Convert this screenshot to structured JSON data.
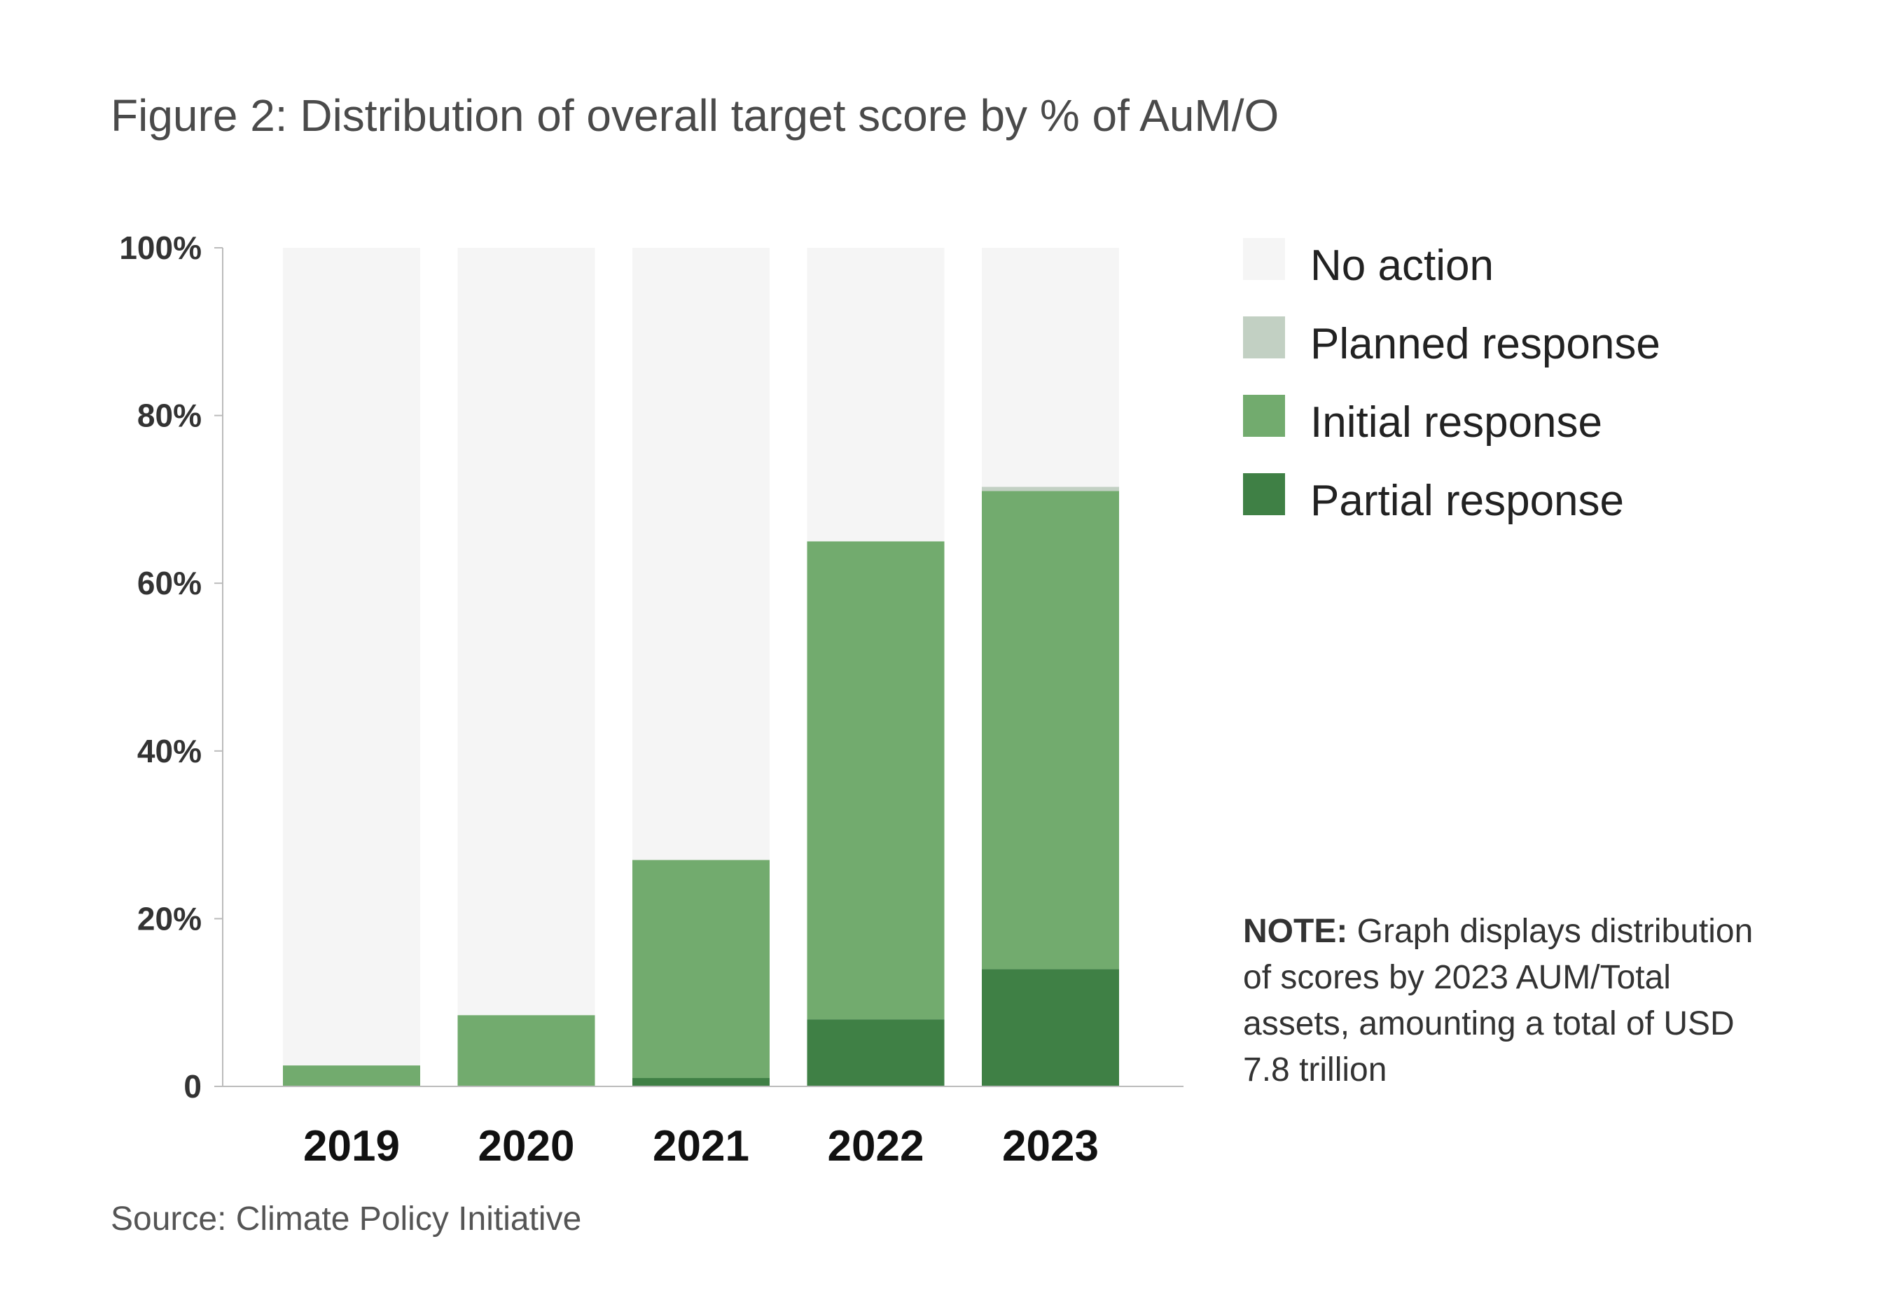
{
  "title": "Figure 2: Distribution of overall target score by % of AuM/O",
  "source": "Source: Climate Policy Initiative",
  "note": {
    "label": "NOTE:",
    "text": " Graph displays distribution of scores by 2023 AUM/Total assets, amounting a total of USD 7.8 trillion"
  },
  "colors": {
    "no_action": "#f5f5f5",
    "planned": "#c2d0c3",
    "initial": "#72ab6e",
    "partial": "#3f8045",
    "axis": "#bbbbbb",
    "tick_text": "#333333",
    "category_text": "#111111"
  },
  "chart_data": {
    "type": "bar",
    "stacked": true,
    "categories": [
      "2019",
      "2020",
      "2021",
      "2022",
      "2023"
    ],
    "series": [
      {
        "name": "Partial response",
        "key": "partial",
        "values": [
          0,
          0,
          1,
          8,
          14
        ]
      },
      {
        "name": "Initial response",
        "key": "initial",
        "values": [
          2.5,
          8.5,
          26,
          57,
          57
        ]
      },
      {
        "name": "Planned response",
        "key": "planned",
        "values": [
          0,
          0,
          0,
          0,
          0.5
        ]
      },
      {
        "name": "No action",
        "key": "no_action",
        "values": [
          97.5,
          91.5,
          73,
          35,
          28.5
        ]
      }
    ],
    "legend_order": [
      "No action",
      "Planned response",
      "Initial response",
      "Partial response"
    ],
    "legend_placement": "top-right",
    "ylim": [
      0,
      100
    ],
    "yticks": [
      "0",
      "20%",
      "40%",
      "60%",
      "80%",
      "100%"
    ],
    "ytick_values": [
      0,
      20,
      40,
      60,
      80,
      100
    ],
    "grid": false
  }
}
